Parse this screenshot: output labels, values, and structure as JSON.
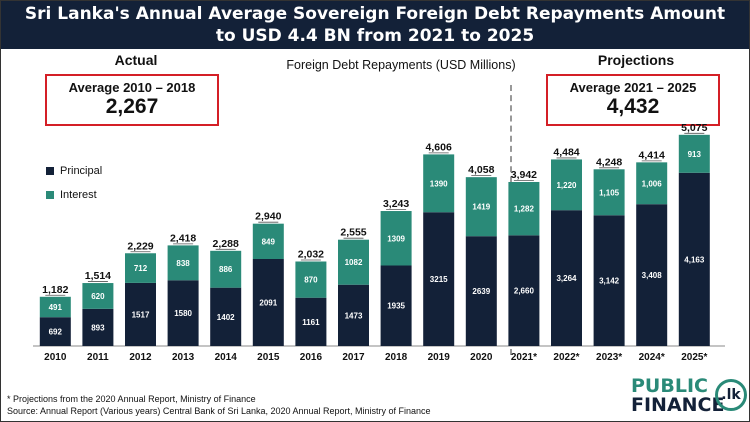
{
  "title_line1": "Sri Lanka's Annual Average Sovereign Foreign Debt Repayments Amount",
  "title_line2": "to USD 4.4 BN from 2021 to 2025",
  "actual_header": "Actual",
  "projections_header": "Projections",
  "actual_avg_label": "Average 2010 – 2018",
  "actual_avg_value": "2,267",
  "proj_avg_label": "Average 2021 – 2025",
  "proj_avg_value": "4,432",
  "footnote1": "* Projections from the 2020 Annual Report, Ministry of Finance",
  "footnote2": "Source: Annual Report (Various years) Central Bank of Sri Lanka, 2020 Annual Report, Ministry of Finance",
  "brand": {
    "word1": "PUBLIC",
    "word2": "FINANCE",
    "badge": ".lk"
  },
  "colors": {
    "principal": "#132138",
    "interest": "#2a8a78",
    "accent": "#d41f26",
    "title_bg": "#132138"
  },
  "chart_data": {
    "type": "bar",
    "stacked": true,
    "title": "Foreign Debt Repayments (USD Millions)",
    "categories": [
      "2010",
      "2011",
      "2012",
      "2013",
      "2014",
      "2015",
      "2016",
      "2017",
      "2018",
      "2019",
      "2020",
      "2021*",
      "2022*",
      "2023*",
      "2024*",
      "2025*"
    ],
    "series": [
      {
        "name": "Principal",
        "values": [
          692,
          893,
          1517,
          1580,
          1402,
          2091,
          1161,
          1473,
          1935,
          3215,
          2639,
          2660,
          3264,
          3142,
          3408,
          4163
        ],
        "labels": [
          "692",
          "893",
          "1517",
          "1580",
          "1402",
          "2091",
          "1161",
          "1473",
          "1935",
          "3215",
          "2639",
          "2,660",
          "3,264",
          "3,142",
          "3,408",
          "4,163"
        ]
      },
      {
        "name": "Interest",
        "values": [
          491,
          620,
          712,
          838,
          886,
          849,
          870,
          1082,
          1309,
          1390,
          1419,
          1282,
          1220,
          1105,
          1006,
          913
        ],
        "labels": [
          "491",
          "620",
          "712",
          "838",
          "886",
          "849",
          "870",
          "1082",
          "1309",
          "1390",
          "1419",
          "1,282",
          "1,220",
          "1,105",
          "1,006",
          "913"
        ]
      }
    ],
    "totals": [
      "1,182",
      "1,514",
      "2,229",
      "2,418",
      "2,288",
      "2,940",
      "2,032",
      "2,555",
      "3,243",
      "4,606",
      "4,058",
      "3,942",
      "4,484",
      "4,248",
      "4,414",
      "5,075"
    ],
    "ylim": [
      0,
      5600
    ],
    "legend": [
      "Principal",
      "Interest"
    ],
    "legend_position": "left",
    "xlabel": "",
    "ylabel": ""
  }
}
